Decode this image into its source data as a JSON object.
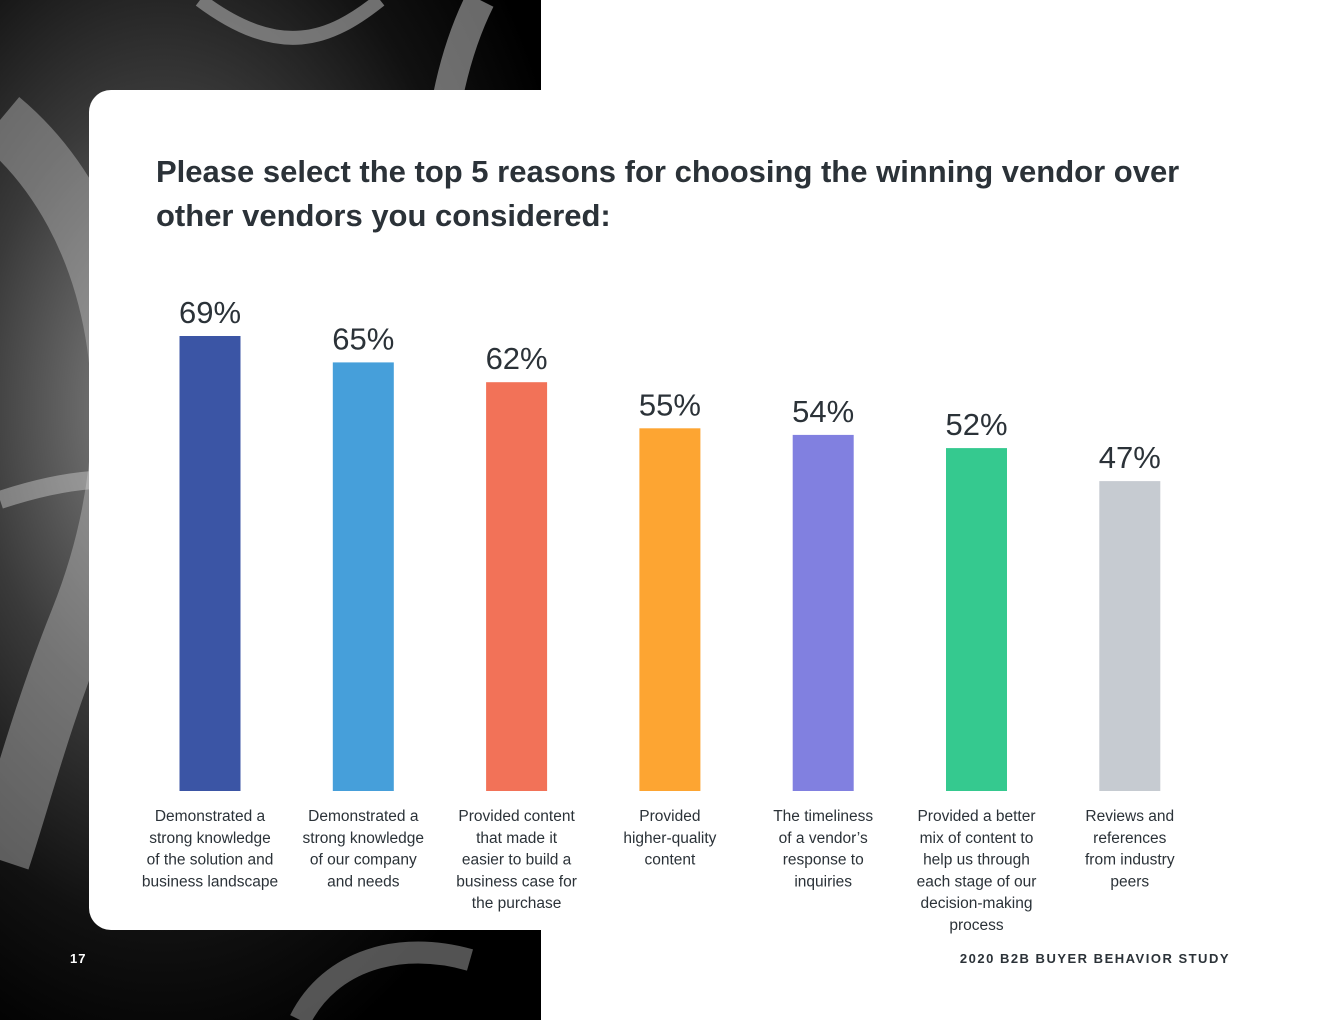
{
  "title": "Please select the top 5 reasons for choosing the winning vendor over other vendors you considered:",
  "footer": {
    "page_number": "17",
    "study_name": "2020 B2B BUYER BEHAVIOR STUDY"
  },
  "chart_data": {
    "type": "bar",
    "categories": [
      [
        "Demonstrated a",
        "strong knowledge",
        "of the solution and",
        "business landscape"
      ],
      [
        "Demonstrated a",
        "strong knowledge",
        "of our company",
        "and needs"
      ],
      [
        "Provided content",
        "that made it",
        "easier to build a",
        "business case for",
        "the purchase"
      ],
      [
        "Provided",
        "higher-quality",
        "content"
      ],
      [
        "The timeliness",
        "of a vendor’s",
        "response to",
        "inquiries"
      ],
      [
        "Provided a better",
        "mix of content to",
        "help us through",
        "each stage of our",
        "decision-making",
        "process"
      ],
      [
        "Reviews and",
        "references",
        "from industry",
        "peers"
      ]
    ],
    "values": [
      69,
      65,
      62,
      55,
      54,
      52,
      47
    ],
    "value_labels": [
      "69%",
      "65%",
      "62%",
      "55%",
      "54%",
      "52%",
      "47%"
    ],
    "colors": [
      "#3b55a5",
      "#469fda",
      "#f27258",
      "#fda532",
      "#8180e0",
      "#35c98f",
      "#c6cbd1"
    ],
    "ylim": [
      0,
      69
    ],
    "grid": false,
    "legend": "none"
  }
}
